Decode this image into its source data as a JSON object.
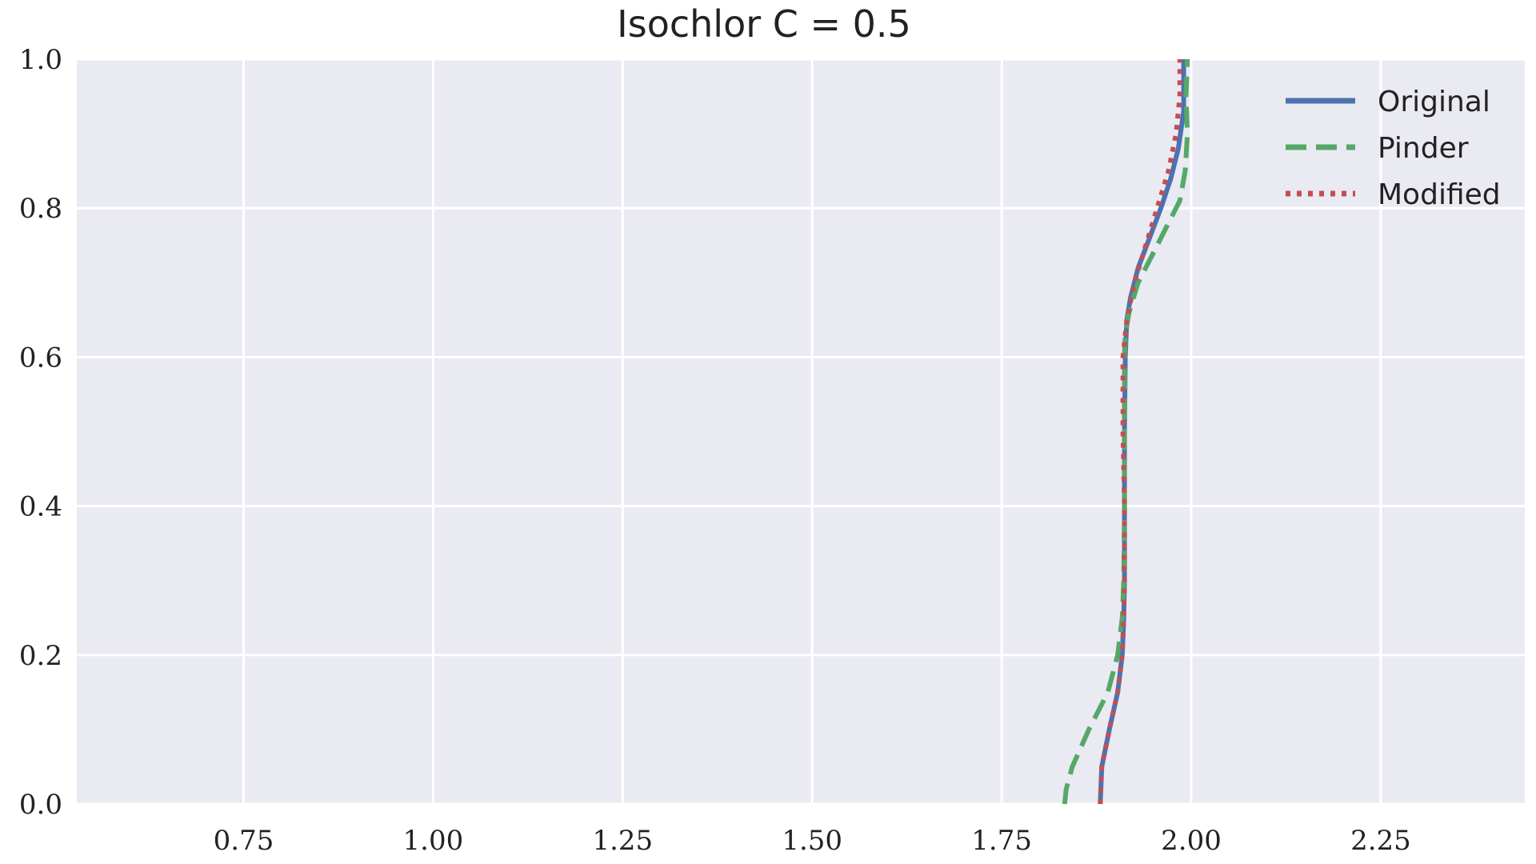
{
  "chart_data": {
    "type": "line",
    "title": "Isochlor C = 0.5",
    "xlabel": "",
    "ylabel": "",
    "xlim": [
      0.53,
      2.44
    ],
    "ylim": [
      0.0,
      1.0
    ],
    "x_ticks": [
      0.75,
      1.0,
      1.25,
      1.5,
      1.75,
      2.0,
      2.25
    ],
    "x_tick_labels": [
      "0.75",
      "1.00",
      "1.25",
      "1.50",
      "1.75",
      "2.00",
      "2.25"
    ],
    "y_ticks": [
      0.0,
      0.2,
      0.4,
      0.6,
      0.8,
      1.0
    ],
    "y_tick_labels": [
      "0.0",
      "0.2",
      "0.4",
      "0.6",
      "0.8",
      "1.0"
    ],
    "grid": true,
    "legend_position": "top-right",
    "background_color": "#eaeaf2",
    "series": [
      {
        "name": "Original",
        "color": "#4c72b0",
        "style": "solid",
        "x": [
          1.88,
          1.882,
          1.892,
          1.903,
          1.909,
          1.911,
          1.912,
          1.912,
          1.912,
          1.913,
          1.915,
          1.92,
          1.93,
          1.945,
          1.96,
          1.973,
          1.983,
          1.99,
          1.99
        ],
        "y": [
          0.0,
          0.05,
          0.1,
          0.15,
          0.2,
          0.25,
          0.3,
          0.4,
          0.5,
          0.6,
          0.65,
          0.68,
          0.72,
          0.76,
          0.8,
          0.84,
          0.88,
          0.93,
          1.0
        ]
      },
      {
        "name": "Pinder",
        "color": "#55a868",
        "style": "dashed",
        "x": [
          1.833,
          1.835,
          1.843,
          1.865,
          1.89,
          1.903,
          1.909,
          1.911,
          1.912,
          1.912,
          1.912,
          1.913,
          1.918,
          1.93,
          1.95,
          1.97,
          1.985,
          1.992,
          1.995,
          1.993,
          1.995
        ],
        "y": [
          0.0,
          0.02,
          0.05,
          0.1,
          0.15,
          0.2,
          0.25,
          0.3,
          0.4,
          0.5,
          0.6,
          0.63,
          0.66,
          0.7,
          0.74,
          0.78,
          0.81,
          0.85,
          0.9,
          0.95,
          1.0
        ]
      },
      {
        "name": "Modified",
        "color": "#c44e52",
        "style": "dotted",
        "x": [
          1.88,
          1.882,
          1.892,
          1.903,
          1.909,
          1.911,
          1.912,
          1.912,
          1.91,
          1.91,
          1.915,
          1.925,
          1.94,
          1.955,
          1.97,
          1.98,
          1.985,
          1.985
        ],
        "y": [
          0.0,
          0.05,
          0.1,
          0.15,
          0.2,
          0.25,
          0.3,
          0.4,
          0.5,
          0.6,
          0.65,
          0.7,
          0.75,
          0.8,
          0.85,
          0.9,
          0.95,
          1.0
        ]
      }
    ]
  }
}
